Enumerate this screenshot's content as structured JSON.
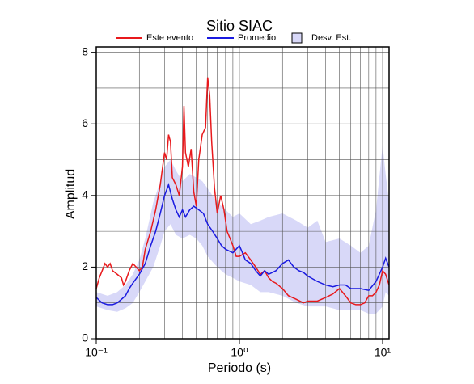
{
  "chart_data": {
    "type": "line",
    "title": "Sitio SIAC",
    "x_label": "Periodo (s)",
    "y_label": "Amplitud",
    "x_log": true,
    "grid": true,
    "minor_grid": true,
    "xlim": [
      0.1,
      11.1
    ],
    "ylim": [
      0,
      8.15
    ],
    "xticks": [
      {
        "value": 0.1,
        "label": "10⁻¹"
      },
      {
        "value": 1,
        "label": "10⁰"
      },
      {
        "value": 10,
        "label": "10¹"
      }
    ],
    "yticks": [
      0,
      2,
      4,
      6,
      8
    ],
    "series": [
      {
        "name": "Este evento",
        "color": "#e8191c",
        "kind": "line",
        "x": [
          0.1,
          0.105,
          0.11,
          0.115,
          0.12,
          0.125,
          0.13,
          0.14,
          0.15,
          0.155,
          0.16,
          0.17,
          0.18,
          0.19,
          0.2,
          0.21,
          0.22,
          0.24,
          0.26,
          0.28,
          0.3,
          0.31,
          0.32,
          0.33,
          0.34,
          0.36,
          0.38,
          0.4,
          0.41,
          0.42,
          0.44,
          0.46,
          0.48,
          0.5,
          0.52,
          0.55,
          0.58,
          0.6,
          0.62,
          0.64,
          0.67,
          0.7,
          0.74,
          0.78,
          0.82,
          0.86,
          0.9,
          0.95,
          1.0,
          1.1,
          1.2,
          1.3,
          1.4,
          1.5,
          1.6,
          1.7,
          1.8,
          2.0,
          2.2,
          2.5,
          2.8,
          3.0,
          3.5,
          4.0,
          4.5,
          5.0,
          5.5,
          6.0,
          6.5,
          7.0,
          7.5,
          8.0,
          8.5,
          9.0,
          9.5,
          10,
          10.5,
          11.1
        ],
        "values": [
          1.4,
          1.7,
          1.9,
          2.1,
          2.0,
          2.1,
          1.9,
          1.8,
          1.7,
          1.5,
          1.6,
          1.9,
          2.1,
          2.0,
          1.9,
          2.0,
          2.5,
          3.0,
          3.6,
          4.3,
          5.2,
          5.0,
          5.7,
          5.5,
          4.5,
          4.3,
          4.0,
          4.8,
          6.5,
          5.2,
          4.8,
          5.3,
          4.1,
          3.7,
          5.0,
          5.7,
          5.9,
          7.3,
          6.8,
          5.5,
          4.2,
          3.5,
          4.0,
          3.6,
          3.0,
          2.8,
          2.6,
          2.3,
          2.3,
          2.4,
          2.2,
          2.0,
          1.8,
          1.9,
          1.7,
          1.6,
          1.55,
          1.4,
          1.2,
          1.1,
          1.0,
          1.05,
          1.05,
          1.15,
          1.25,
          1.4,
          1.2,
          1.0,
          0.95,
          0.95,
          1.0,
          1.2,
          1.2,
          1.3,
          1.5,
          1.9,
          1.8,
          1.5
        ]
      },
      {
        "name": "Promedio",
        "color": "#1a1ae0",
        "kind": "line",
        "x": [
          0.1,
          0.11,
          0.12,
          0.13,
          0.14,
          0.15,
          0.16,
          0.17,
          0.18,
          0.2,
          0.22,
          0.24,
          0.26,
          0.28,
          0.3,
          0.32,
          0.34,
          0.36,
          0.38,
          0.4,
          0.42,
          0.45,
          0.48,
          0.52,
          0.56,
          0.6,
          0.65,
          0.7,
          0.75,
          0.8,
          0.9,
          1.0,
          1.05,
          1.1,
          1.2,
          1.3,
          1.4,
          1.5,
          1.6,
          1.8,
          2.0,
          2.2,
          2.4,
          2.6,
          2.8,
          3.0,
          3.5,
          4.0,
          4.5,
          5.0,
          5.5,
          6.0,
          7.0,
          8.0,
          9.0,
          10,
          10.5,
          11.1
        ],
        "values": [
          1.15,
          1.0,
          0.95,
          0.95,
          1.0,
          1.1,
          1.2,
          1.4,
          1.55,
          1.8,
          2.1,
          2.6,
          3.0,
          3.5,
          4.0,
          4.3,
          3.9,
          3.6,
          3.4,
          3.6,
          3.4,
          3.6,
          3.7,
          3.6,
          3.5,
          3.2,
          3.0,
          2.8,
          2.6,
          2.5,
          2.4,
          2.6,
          2.4,
          2.2,
          2.1,
          1.9,
          1.75,
          1.9,
          1.8,
          1.9,
          2.1,
          2.2,
          2.0,
          1.9,
          1.85,
          1.75,
          1.6,
          1.5,
          1.45,
          1.5,
          1.5,
          1.4,
          1.4,
          1.35,
          1.6,
          2.0,
          2.25,
          2.0
        ]
      },
      {
        "name": "Desv. Est.",
        "color": "#d8d8f8",
        "kind": "band",
        "x": [
          0.1,
          0.12,
          0.14,
          0.16,
          0.18,
          0.2,
          0.22,
          0.25,
          0.28,
          0.3,
          0.33,
          0.36,
          0.4,
          0.45,
          0.5,
          0.55,
          0.6,
          0.7,
          0.8,
          0.9,
          1.0,
          1.2,
          1.4,
          1.6,
          2.0,
          2.5,
          3.0,
          3.5,
          4.0,
          5.0,
          6.0,
          7.0,
          8.0,
          9.0,
          10,
          10.5,
          11.1
        ],
        "values": [
          1.3,
          1.2,
          1.3,
          1.5,
          1.8,
          2.2,
          2.8,
          3.8,
          4.4,
          4.8,
          5.0,
          4.7,
          4.4,
          4.6,
          4.5,
          4.4,
          4.2,
          3.8,
          3.6,
          3.4,
          3.5,
          3.2,
          3.3,
          3.4,
          3.5,
          3.3,
          3.1,
          3.3,
          2.7,
          2.8,
          2.6,
          2.4,
          2.6,
          3.6,
          5.4,
          4.6,
          3.8
        ],
        "lower": [
          0.9,
          0.8,
          0.75,
          0.85,
          1.0,
          1.3,
          1.6,
          2.0,
          2.6,
          3.0,
          3.2,
          2.9,
          2.8,
          2.9,
          2.8,
          2.6,
          2.3,
          2.0,
          1.8,
          1.7,
          1.6,
          1.5,
          1.3,
          1.3,
          1.2,
          1.0,
          0.9,
          0.9,
          0.9,
          0.8,
          0.8,
          0.8,
          0.7,
          0.7,
          0.9,
          1.3,
          1.2
        ]
      }
    ]
  }
}
